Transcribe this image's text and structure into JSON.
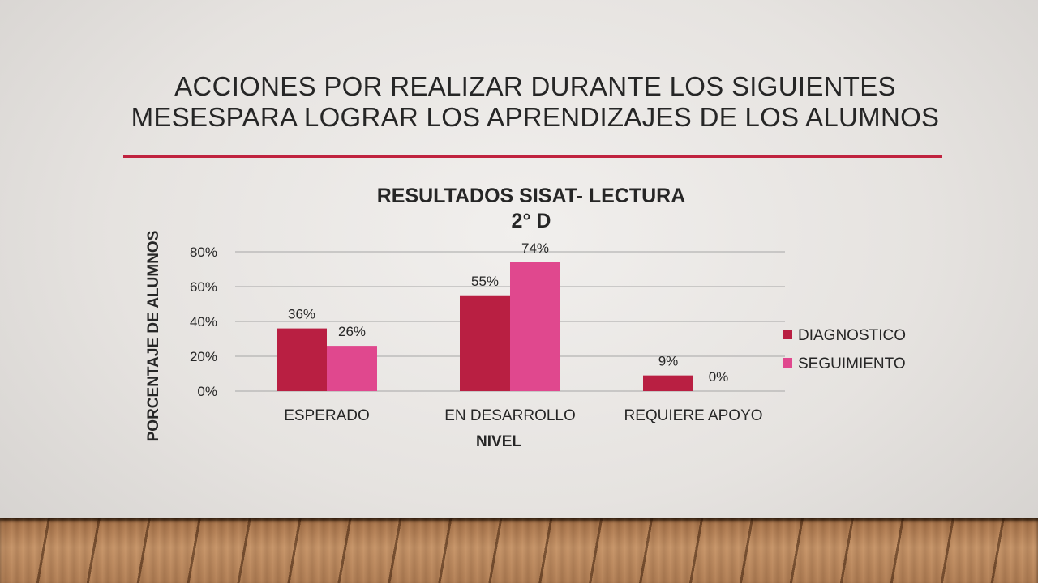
{
  "slide": {
    "title": "ACCIONES POR REALIZAR DURANTE LOS SIGUIENTES MESESPARA LOGRAR LOS APRENDIZAJES DE LOS ALUMNOS"
  },
  "chart_data": {
    "type": "bar",
    "title": "RESULTADOS SISAT- LECTURA",
    "subtitle": "2° D",
    "xlabel": "NIVEL",
    "ylabel": "PORCENTAJE DE ALUMNOS",
    "categories": [
      "ESPERADO",
      "EN DESARROLLO",
      "REQUIERE APOYO"
    ],
    "series": [
      {
        "name": "DIAGNOSTICO",
        "values": [
          36,
          55,
          9
        ],
        "labels": [
          "36%",
          "55%",
          "9%"
        ],
        "color": "#b91f42"
      },
      {
        "name": "SEGUIMIENTO",
        "values": [
          26,
          74,
          0
        ],
        "labels": [
          "26%",
          "74%",
          "0%"
        ],
        "color": "#e0488e"
      }
    ],
    "ylim": [
      0,
      80
    ],
    "yticks": [
      "0%",
      "20%",
      "40%",
      "60%",
      "80%"
    ],
    "grid": true,
    "legend": "right"
  }
}
